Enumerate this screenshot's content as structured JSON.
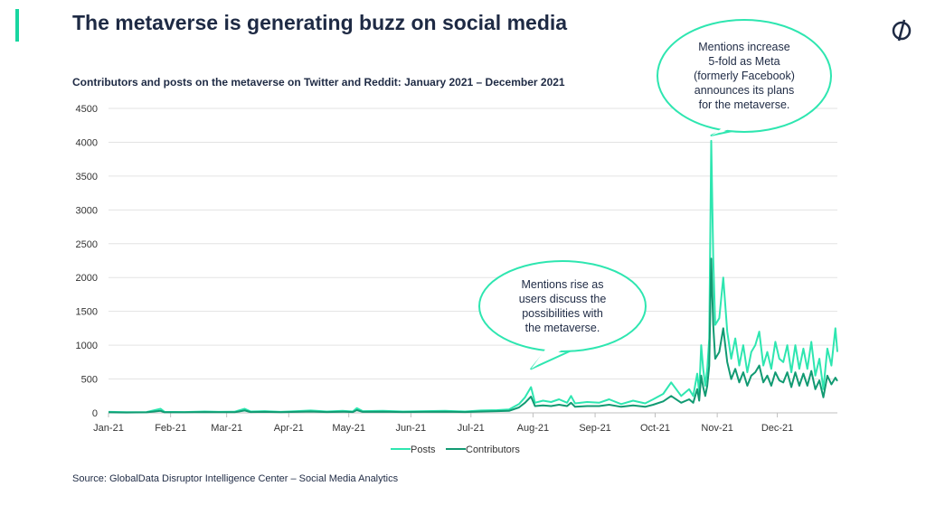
{
  "header": {
    "title": "The metaverse is generating buzz on social media",
    "logo_icon": "globaldata-logo-icon"
  },
  "footer": {
    "source": "Source: GlobalData Disruptor Intelligence Center – Social Media Analytics"
  },
  "colors": {
    "accent": "#18d6a0",
    "posts": "#2ee6b0",
    "contributors": "#119a72",
    "text": "#1e2a44",
    "bubble_stroke": "#2ee6b0"
  },
  "chart_data": {
    "type": "line",
    "title": "Contributors and posts on the metaverse on Twitter and Reddit: January 2021 – December 2021",
    "xlabel": "",
    "ylabel": "",
    "ylim": [
      0,
      4500
    ],
    "yticks": [
      0,
      500,
      1000,
      1500,
      2000,
      2500,
      3000,
      3500,
      4000,
      4500
    ],
    "xlim": [
      "2021-01-01",
      "2021-12-31"
    ],
    "xtick_labels": [
      "Jan-21",
      "Feb-21",
      "Mar-21",
      "Apr-21",
      "May-21",
      "Jun-21",
      "Jul-21",
      "Aug-21",
      "Sep-21",
      "Oct-21",
      "Nov-21",
      "Dec-21"
    ],
    "xtick_dates": [
      "2021-01-01",
      "2021-02-01",
      "2021-03-01",
      "2021-04-01",
      "2021-05-01",
      "2021-06-01",
      "2021-07-01",
      "2021-08-01",
      "2021-09-01",
      "2021-10-01",
      "2021-11-01",
      "2021-12-01"
    ],
    "grid": "horizontal",
    "legend_position": "bottom",
    "series": [
      {
        "name": "Posts",
        "points": [
          [
            "2021-01-01",
            15
          ],
          [
            "2021-01-10",
            10
          ],
          [
            "2021-01-20",
            12
          ],
          [
            "2021-01-27",
            60
          ],
          [
            "2021-01-29",
            15
          ],
          [
            "2021-02-08",
            12
          ],
          [
            "2021-02-18",
            20
          ],
          [
            "2021-02-25",
            15
          ],
          [
            "2021-03-05",
            18
          ],
          [
            "2021-03-10",
            60
          ],
          [
            "2021-03-13",
            20
          ],
          [
            "2021-03-20",
            25
          ],
          [
            "2021-03-28",
            15
          ],
          [
            "2021-04-05",
            25
          ],
          [
            "2021-04-12",
            35
          ],
          [
            "2021-04-20",
            20
          ],
          [
            "2021-04-28",
            30
          ],
          [
            "2021-05-03",
            20
          ],
          [
            "2021-05-05",
            70
          ],
          [
            "2021-05-08",
            25
          ],
          [
            "2021-05-18",
            30
          ],
          [
            "2021-05-28",
            20
          ],
          [
            "2021-06-08",
            25
          ],
          [
            "2021-06-18",
            30
          ],
          [
            "2021-06-28",
            20
          ],
          [
            "2021-07-06",
            35
          ],
          [
            "2021-07-14",
            40
          ],
          [
            "2021-07-20",
            50
          ],
          [
            "2021-07-25",
            130
          ],
          [
            "2021-07-28",
            230
          ],
          [
            "2021-07-31",
            380
          ],
          [
            "2021-08-02",
            150
          ],
          [
            "2021-08-06",
            180
          ],
          [
            "2021-08-10",
            160
          ],
          [
            "2021-08-14",
            200
          ],
          [
            "2021-08-18",
            150
          ],
          [
            "2021-08-20",
            250
          ],
          [
            "2021-08-22",
            140
          ],
          [
            "2021-08-28",
            160
          ],
          [
            "2021-09-03",
            150
          ],
          [
            "2021-09-08",
            200
          ],
          [
            "2021-09-14",
            130
          ],
          [
            "2021-09-20",
            180
          ],
          [
            "2021-09-26",
            140
          ],
          [
            "2021-09-30",
            200
          ],
          [
            "2021-10-05",
            280
          ],
          [
            "2021-10-09",
            450
          ],
          [
            "2021-10-14",
            250
          ],
          [
            "2021-10-18",
            350
          ],
          [
            "2021-10-20",
            250
          ],
          [
            "2021-10-22",
            580
          ],
          [
            "2021-10-23",
            300
          ],
          [
            "2021-10-24",
            1000
          ],
          [
            "2021-10-25",
            650
          ],
          [
            "2021-10-26",
            400
          ],
          [
            "2021-10-27",
            650
          ],
          [
            "2021-10-28",
            1100
          ],
          [
            "2021-10-29",
            4020
          ],
          [
            "2021-10-30",
            2300
          ],
          [
            "2021-10-31",
            1300
          ],
          [
            "2021-11-02",
            1400
          ],
          [
            "2021-11-04",
            2000
          ],
          [
            "2021-11-06",
            1200
          ],
          [
            "2021-11-08",
            800
          ],
          [
            "2021-11-10",
            1100
          ],
          [
            "2021-11-12",
            700
          ],
          [
            "2021-11-14",
            1000
          ],
          [
            "2021-11-16",
            600
          ],
          [
            "2021-11-18",
            900
          ],
          [
            "2021-11-20",
            1000
          ],
          [
            "2021-11-22",
            1200
          ],
          [
            "2021-11-24",
            700
          ],
          [
            "2021-11-26",
            900
          ],
          [
            "2021-11-28",
            650
          ],
          [
            "2021-11-30",
            1050
          ],
          [
            "2021-12-02",
            800
          ],
          [
            "2021-12-04",
            750
          ],
          [
            "2021-12-06",
            1000
          ],
          [
            "2021-12-08",
            600
          ],
          [
            "2021-12-10",
            1000
          ],
          [
            "2021-12-12",
            650
          ],
          [
            "2021-12-14",
            950
          ],
          [
            "2021-12-16",
            650
          ],
          [
            "2021-12-18",
            1050
          ],
          [
            "2021-12-20",
            550
          ],
          [
            "2021-12-22",
            800
          ],
          [
            "2021-12-24",
            350
          ],
          [
            "2021-12-26",
            950
          ],
          [
            "2021-12-28",
            700
          ],
          [
            "2021-12-30",
            1250
          ],
          [
            "2021-12-31",
            900
          ]
        ]
      },
      {
        "name": "Contributors",
        "points": [
          [
            "2021-01-01",
            8
          ],
          [
            "2021-01-10",
            6
          ],
          [
            "2021-01-20",
            8
          ],
          [
            "2021-01-27",
            30
          ],
          [
            "2021-01-29",
            8
          ],
          [
            "2021-02-08",
            8
          ],
          [
            "2021-02-18",
            12
          ],
          [
            "2021-02-25",
            10
          ],
          [
            "2021-03-05",
            10
          ],
          [
            "2021-03-10",
            35
          ],
          [
            "2021-03-13",
            12
          ],
          [
            "2021-03-20",
            15
          ],
          [
            "2021-03-28",
            10
          ],
          [
            "2021-04-05",
            15
          ],
          [
            "2021-04-12",
            20
          ],
          [
            "2021-04-20",
            12
          ],
          [
            "2021-04-28",
            18
          ],
          [
            "2021-05-03",
            12
          ],
          [
            "2021-05-05",
            40
          ],
          [
            "2021-05-08",
            15
          ],
          [
            "2021-05-18",
            18
          ],
          [
            "2021-05-28",
            12
          ],
          [
            "2021-06-08",
            15
          ],
          [
            "2021-06-18",
            18
          ],
          [
            "2021-06-28",
            12
          ],
          [
            "2021-07-06",
            20
          ],
          [
            "2021-07-14",
            25
          ],
          [
            "2021-07-20",
            30
          ],
          [
            "2021-07-25",
            80
          ],
          [
            "2021-07-28",
            150
          ],
          [
            "2021-07-31",
            240
          ],
          [
            "2021-08-02",
            100
          ],
          [
            "2021-08-06",
            110
          ],
          [
            "2021-08-10",
            100
          ],
          [
            "2021-08-14",
            120
          ],
          [
            "2021-08-18",
            100
          ],
          [
            "2021-08-20",
            150
          ],
          [
            "2021-08-22",
            90
          ],
          [
            "2021-08-28",
            100
          ],
          [
            "2021-09-03",
            100
          ],
          [
            "2021-09-08",
            120
          ],
          [
            "2021-09-14",
            90
          ],
          [
            "2021-09-20",
            110
          ],
          [
            "2021-09-26",
            90
          ],
          [
            "2021-09-30",
            120
          ],
          [
            "2021-10-05",
            170
          ],
          [
            "2021-10-09",
            250
          ],
          [
            "2021-10-14",
            150
          ],
          [
            "2021-10-18",
            200
          ],
          [
            "2021-10-20",
            150
          ],
          [
            "2021-10-22",
            350
          ],
          [
            "2021-10-23",
            180
          ],
          [
            "2021-10-24",
            550
          ],
          [
            "2021-10-25",
            380
          ],
          [
            "2021-10-26",
            250
          ],
          [
            "2021-10-27",
            400
          ],
          [
            "2021-10-28",
            700
          ],
          [
            "2021-10-29",
            2280
          ],
          [
            "2021-10-30",
            1300
          ],
          [
            "2021-10-31",
            800
          ],
          [
            "2021-11-02",
            900
          ],
          [
            "2021-11-04",
            1250
          ],
          [
            "2021-11-06",
            750
          ],
          [
            "2021-11-08",
            500
          ],
          [
            "2021-11-10",
            650
          ],
          [
            "2021-11-12",
            450
          ],
          [
            "2021-11-14",
            600
          ],
          [
            "2021-11-16",
            400
          ],
          [
            "2021-11-18",
            550
          ],
          [
            "2021-11-20",
            600
          ],
          [
            "2021-11-22",
            700
          ],
          [
            "2021-11-24",
            450
          ],
          [
            "2021-11-26",
            550
          ],
          [
            "2021-11-28",
            400
          ],
          [
            "2021-11-30",
            600
          ],
          [
            "2021-12-02",
            480
          ],
          [
            "2021-12-04",
            450
          ],
          [
            "2021-12-06",
            600
          ],
          [
            "2021-12-08",
            380
          ],
          [
            "2021-12-10",
            600
          ],
          [
            "2021-12-12",
            400
          ],
          [
            "2021-12-14",
            580
          ],
          [
            "2021-12-16",
            400
          ],
          [
            "2021-12-18",
            620
          ],
          [
            "2021-12-20",
            350
          ],
          [
            "2021-12-22",
            480
          ],
          [
            "2021-12-24",
            230
          ],
          [
            "2021-12-26",
            550
          ],
          [
            "2021-12-28",
            420
          ],
          [
            "2021-12-30",
            520
          ],
          [
            "2021-12-31",
            470
          ]
        ]
      }
    ],
    "annotations": [
      {
        "lines": [
          "Mentions rise as",
          "users discuss the",
          "possibilities with",
          "the metaverse."
        ],
        "target": [
          "2021-07-31",
          650
        ]
      },
      {
        "lines": [
          "Mentions increase",
          "5-fold as Meta",
          "(formerly Facebook)",
          "announces its plans",
          "for the metaverse."
        ],
        "target": [
          "2021-10-29",
          4100
        ]
      }
    ]
  }
}
